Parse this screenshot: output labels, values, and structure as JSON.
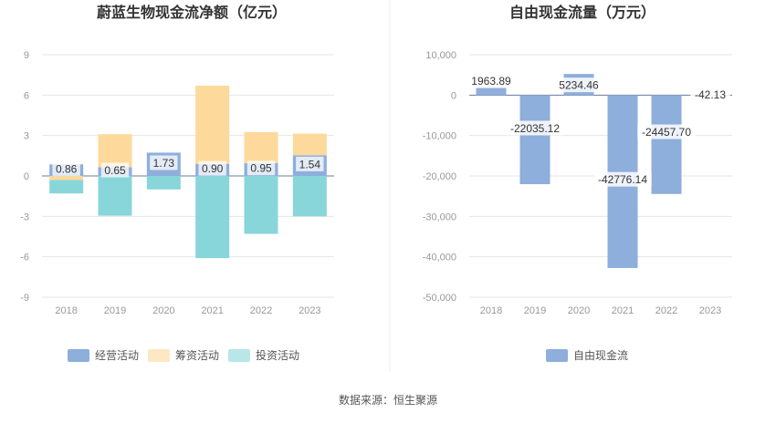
{
  "source": "数据来源：恒生聚源",
  "colors": {
    "operating": "#8eaedc",
    "financing": "#fdd99b",
    "investing": "#88d6da",
    "fcf": "#8eaedc",
    "label_bg": "#ffffff"
  },
  "chart_data": [
    {
      "type": "bar",
      "stacked": true,
      "title": "蔚蓝生物现金流净额（亿元）",
      "categories": [
        "2018",
        "2019",
        "2020",
        "2021",
        "2022",
        "2023"
      ],
      "ylim": [
        -9,
        9
      ],
      "yticks": [
        9,
        6,
        3,
        0,
        -3,
        -6,
        -9
      ],
      "grid": true,
      "legend_position": "bottom",
      "series": [
        {
          "name": "经营活动",
          "key": "operating",
          "values": [
            0.86,
            0.65,
            1.73,
            0.9,
            0.95,
            1.54
          ]
        },
        {
          "name": "筹资活动",
          "key": "financing",
          "values": [
            -0.3,
            2.45,
            0.0,
            5.8,
            2.3,
            1.6
          ]
        },
        {
          "name": "投资活动",
          "key": "investing",
          "values": [
            -1.0,
            -2.95,
            -1.0,
            -6.1,
            -4.3,
            -3.0
          ]
        }
      ],
      "data_labels": [
        "0.86",
        "0.65",
        "1.73",
        "0.90",
        "0.95",
        "1.54"
      ]
    },
    {
      "type": "bar",
      "title": "自由现金流量（万元）",
      "categories": [
        "2018",
        "2019",
        "2020",
        "2021",
        "2022",
        "2023"
      ],
      "ylim": [
        -50000,
        10000
      ],
      "yticks": [
        10000,
        0,
        -10000,
        -20000,
        -30000,
        -40000,
        -50000
      ],
      "ytick_labels": [
        "10,000",
        "0",
        "-10,000",
        "-20,000",
        "-30,000",
        "-40,000",
        "-50,000"
      ],
      "grid": true,
      "legend_position": "bottom",
      "series": [
        {
          "name": "自由现金流",
          "key": "fcf",
          "values": [
            1963.89,
            -22035.12,
            5234.46,
            -42776.14,
            -24457.7,
            -42.13
          ]
        }
      ],
      "data_labels": [
        "1963.89",
        "-22035.12",
        "5234.46",
        "-42776.14",
        "-24457.70",
        "-42.13"
      ]
    }
  ]
}
